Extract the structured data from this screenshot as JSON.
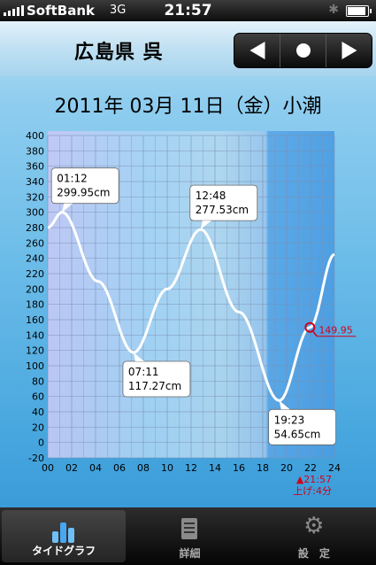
{
  "status": {
    "carrier": "SoftBank",
    "network": "3G",
    "time": "21:57"
  },
  "nav": {
    "title": "広島県 呉",
    "prev_icon": "triangle-left",
    "today_icon": "circle",
    "next_icon": "triangle-right"
  },
  "heading": "2011年 03月 11日（金）小潮",
  "chart_data": {
    "type": "line",
    "x_ticks": [
      "00",
      "02",
      "04",
      "06",
      "08",
      "10",
      "12",
      "14",
      "16",
      "18",
      "20",
      "22",
      "24"
    ],
    "y_ticks": [
      "400",
      "380",
      "360",
      "340",
      "320",
      "300",
      "280",
      "260",
      "240",
      "220",
      "200",
      "180",
      "160",
      "140",
      "120",
      "100",
      "80",
      "60",
      "40",
      "20",
      "0",
      "-20"
    ],
    "ylim": [
      -20,
      400
    ],
    "xlim": [
      0,
      24
    ],
    "grid": true,
    "series": [
      {
        "x": [
          0,
          1.2,
          4.2,
          7.18,
          10,
          12.8,
          16,
          19.38,
          21.95,
          24
        ],
        "y": [
          280,
          299.95,
          210,
          117.27,
          200,
          277.53,
          170,
          54.65,
          149.95,
          245
        ]
      }
    ],
    "extremes": [
      {
        "time": "01:12",
        "height": "299.95cm",
        "x": 1.2,
        "y": 299.95
      },
      {
        "time": "07:11",
        "height": "117.27cm",
        "x": 7.18,
        "y": 117.27
      },
      {
        "time": "12:48",
        "height": "277.53cm",
        "x": 12.8,
        "y": 277.53
      },
      {
        "time": "19:23",
        "height": "54.65cm",
        "x": 19.38,
        "y": 54.65
      }
    ],
    "current": {
      "x": 21.95,
      "y": 149.95,
      "label": "149.95",
      "time_label": "▲21:57",
      "trend_label": "上げ:4分",
      "color": "#d0021b"
    },
    "line_color": "#ffffff"
  },
  "tabs": [
    {
      "label": "タイドグラフ",
      "icon": "bar-chart-icon",
      "active": true
    },
    {
      "label": "詳細",
      "icon": "document-icon",
      "active": false
    },
    {
      "label": "設　定",
      "icon": "gear-icon",
      "active": false
    }
  ]
}
